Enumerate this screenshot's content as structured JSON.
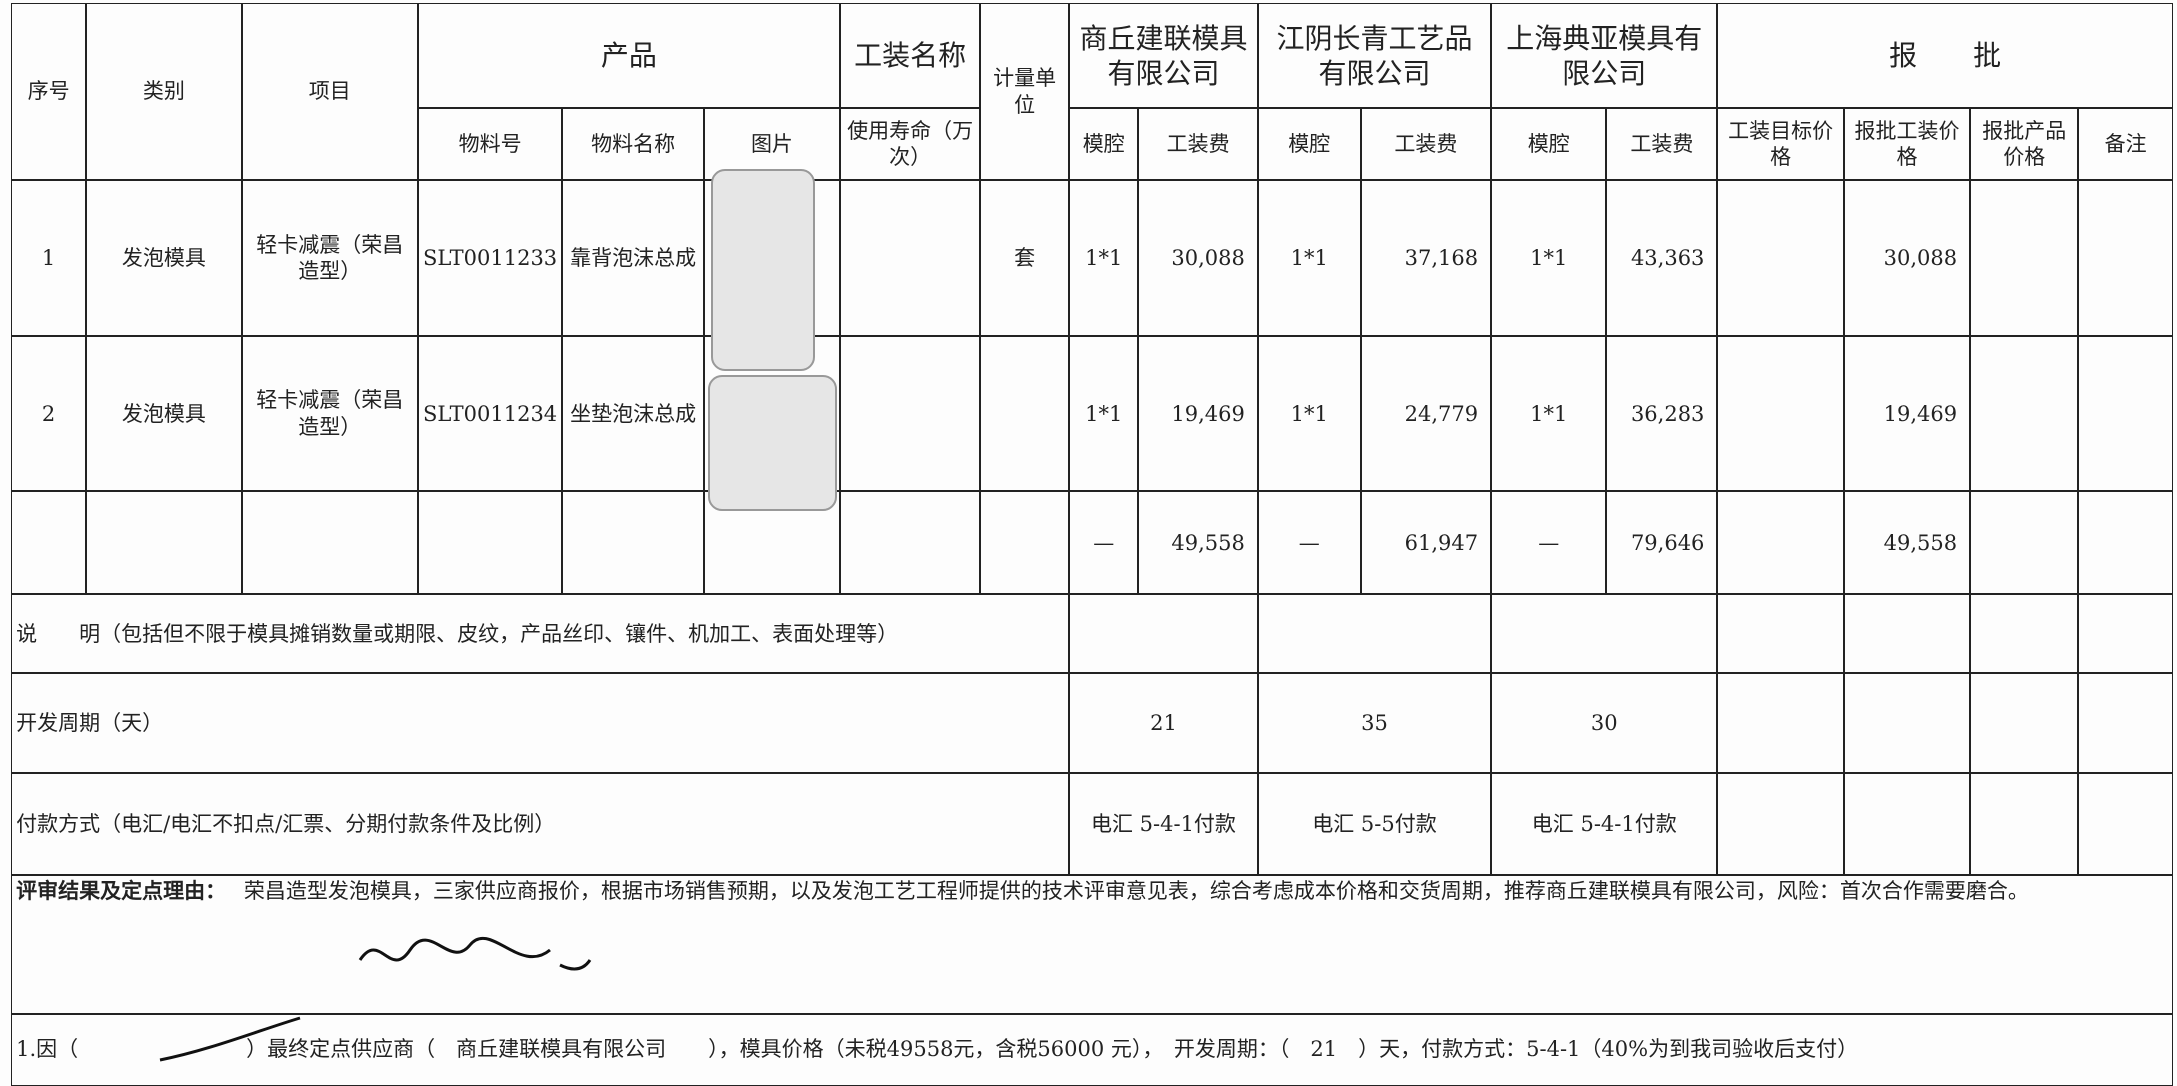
{
  "header": {
    "seq": "序号",
    "category": "类别",
    "project": "项目",
    "product": "产品",
    "tooling_name": "工装名称",
    "unit": "计量单位",
    "suppliers": [
      "商丘建联模具有限公司",
      "江阴长青工艺品有限公司",
      "上海典亚模具有限公司"
    ],
    "approval": "报　　批",
    "material_no": "物料号",
    "material_name": "物料名称",
    "picture": "图片",
    "life": "使用寿命（万次）",
    "cavity": "模腔",
    "fee": "工装费",
    "target_price": "工装目标价格",
    "approved_tooling_price": "报批工装价格",
    "approved_product_price": "报批产品价格",
    "remark": "备注"
  },
  "rows": [
    {
      "seq": "1",
      "category": "发泡模具",
      "project": "轻卡减震（荣昌造型）",
      "material_no": "SLT0011233",
      "material_name": "靠背泡沫总成",
      "unit": "套",
      "quotes": [
        {
          "cavity": "1*1",
          "fee": "30,088"
        },
        {
          "cavity": "1*1",
          "fee": "37,168"
        },
        {
          "cavity": "1*1",
          "fee": "43,363"
        }
      ],
      "approved_tooling_price": "30,088"
    },
    {
      "seq": "2",
      "category": "发泡模具",
      "project": "轻卡减震（荣昌造型）",
      "material_no": "SLT0011234",
      "material_name": "坐垫泡沫总成",
      "quotes": [
        {
          "cavity": "1*1",
          "fee": "19,469"
        },
        {
          "cavity": "1*1",
          "fee": "24,779"
        },
        {
          "cavity": "1*1",
          "fee": "36,283"
        }
      ],
      "approved_tooling_price": "19,469"
    }
  ],
  "total": {
    "quotes": [
      {
        "cavity": "—",
        "fee": "49,558"
      },
      {
        "cavity": "—",
        "fee": "61,947"
      },
      {
        "cavity": "—",
        "fee": "79,646"
      }
    ],
    "approved_tooling_price": "49,558"
  },
  "description": "说　　明（包括但不限于模具摊销数量或期限、皮纹，产品丝印、镶件、机加工、表面处理等）",
  "dev_cycle": {
    "label": "开发周期（天）",
    "values": [
      "21",
      "35",
      "30"
    ]
  },
  "payment": {
    "label": "付款方式（电汇/电汇不扣点/汇票、分期付款条件及比例）",
    "values": [
      "电汇 5-4-1付款",
      "电汇 5-5付款",
      "电汇 5-4-1付款"
    ]
  },
  "review": {
    "label": "评审结果及定点理由：",
    "text": "荣昌造型发泡模具，三家供应商报价，根据市场销售预期，以及发泡工艺工程师提供的技术评审意见表，综合考虑成本价格和交货周期，推荐商丘建联模具有限公司，风险：首次合作需要磨合。"
  },
  "conclusion": "1.因（　　　　　　　　）最终定点供应商（　商丘建联模具有限公司　　），模具价格（未税49558元，含税56000 元），　开发周期：（　21　）天，付款方式：5-4-1（40%为到我司验收后支付）"
}
